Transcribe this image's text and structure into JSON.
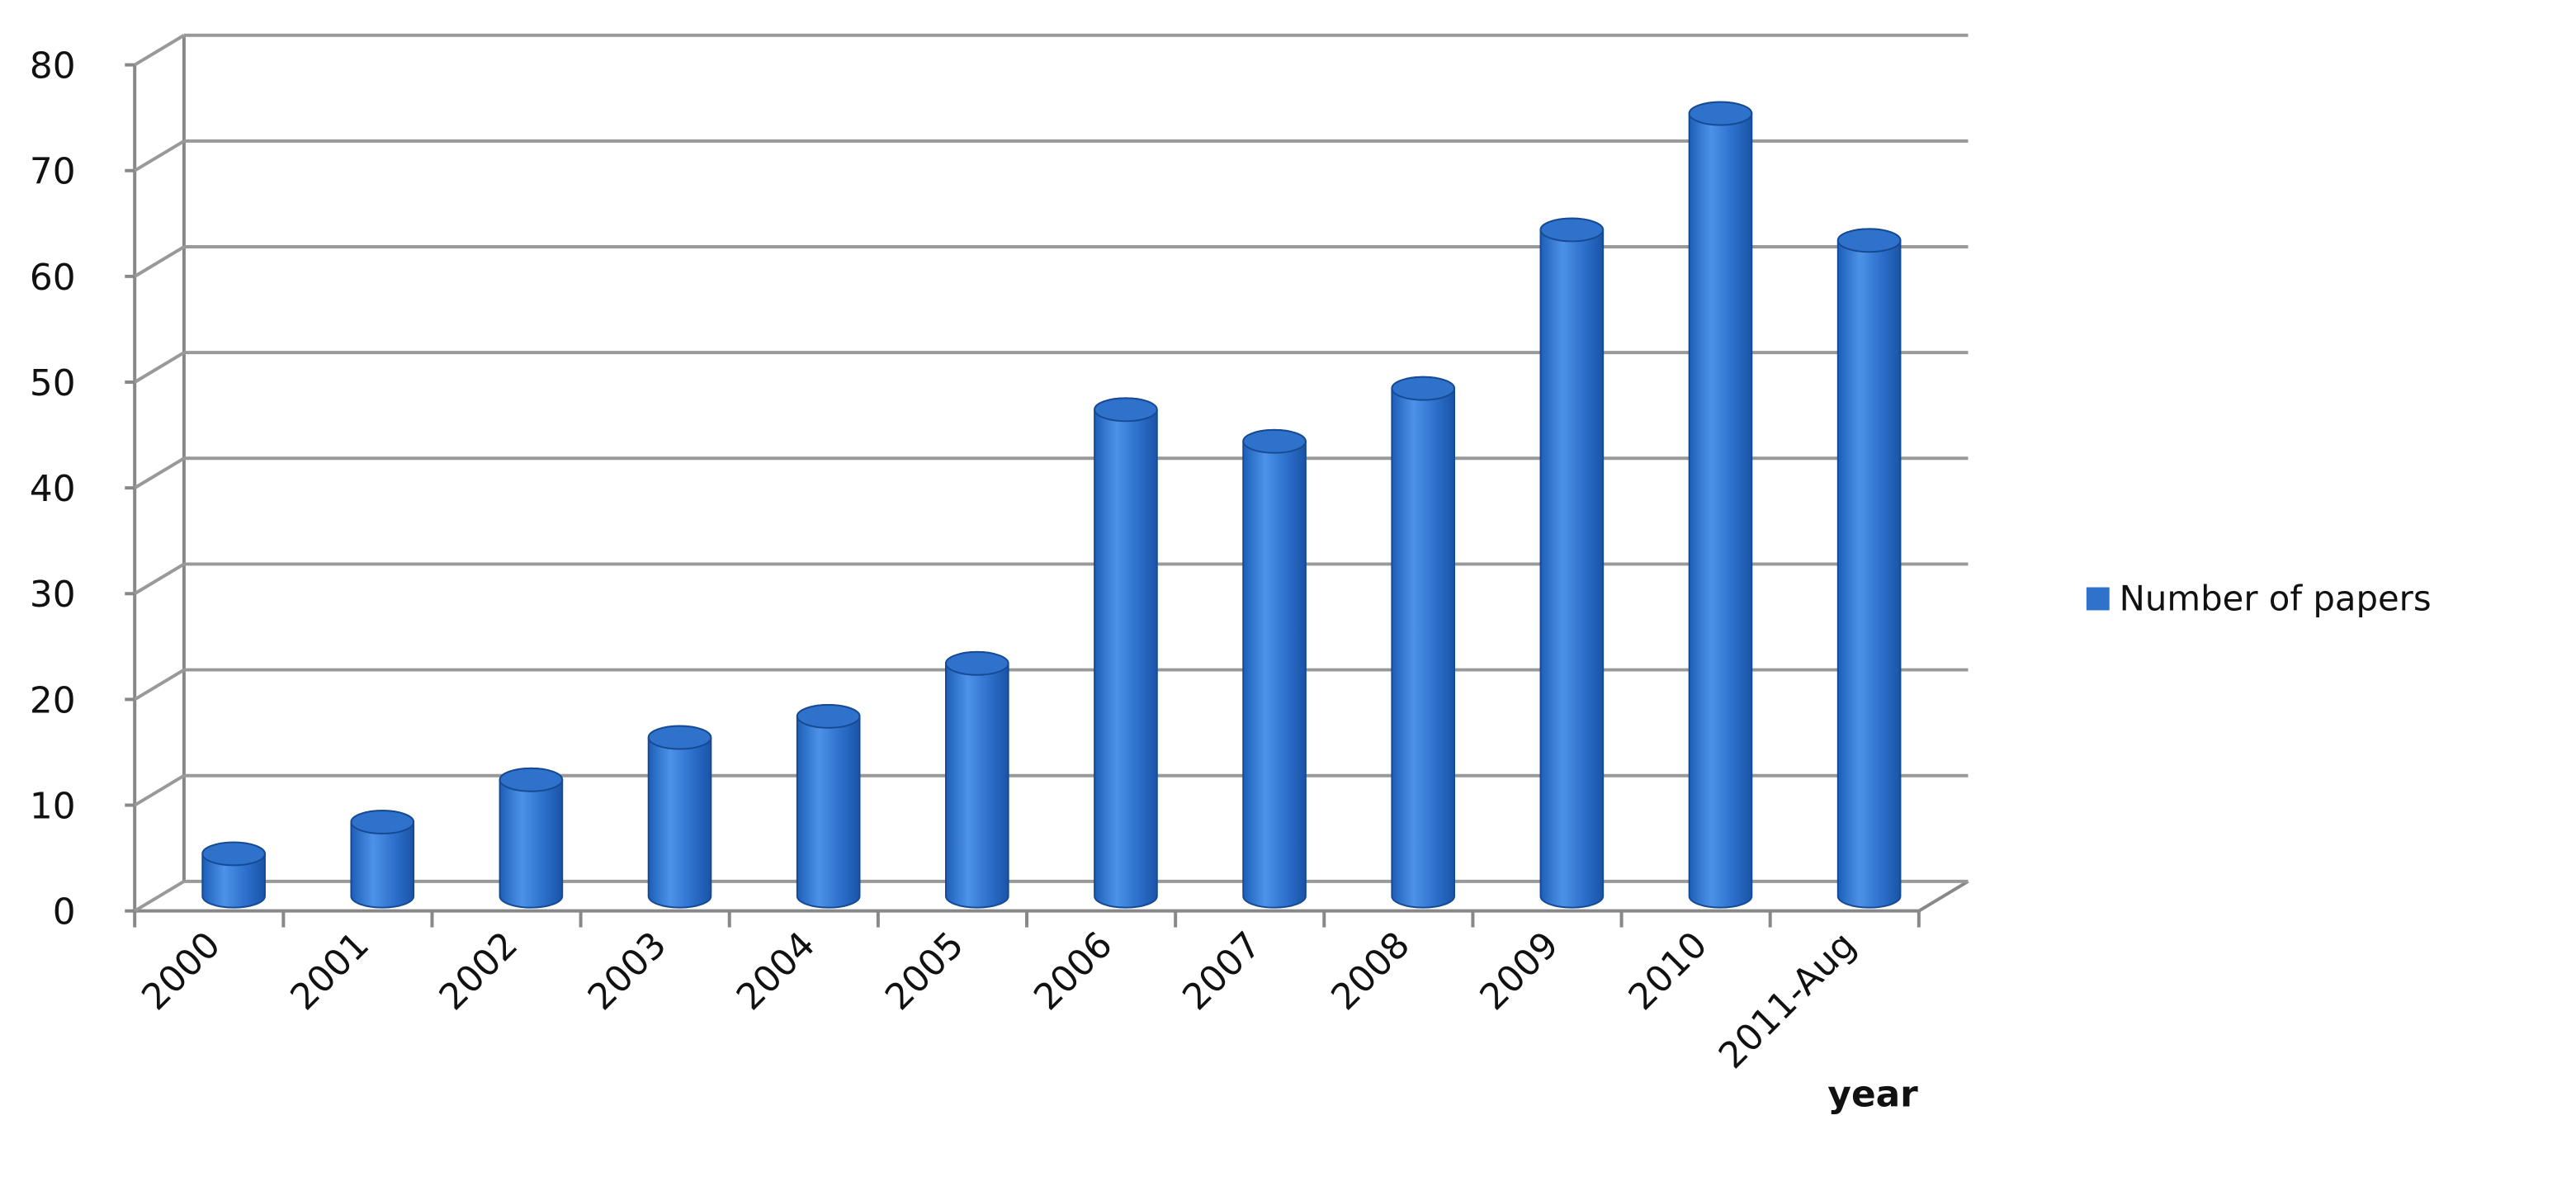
{
  "chart_data": {
    "type": "bar3d",
    "x_label": "year",
    "categories": [
      "2000",
      "2001",
      "2002",
      "2003",
      "2004",
      "2005",
      "2006",
      "2007",
      "2008",
      "2009",
      "2010",
      "2011-Aug"
    ],
    "series": [
      {
        "name": "Number of papers",
        "color": "#2f72cc",
        "values": [
          4,
          7,
          11,
          15,
          17,
          22,
          46,
          43,
          48,
          63,
          74,
          62
        ]
      }
    ],
    "ylim": [
      0,
      80
    ],
    "yticks": [
      0,
      10,
      20,
      30,
      40,
      50,
      60,
      70,
      80
    ],
    "grid": true,
    "legend": "right"
  }
}
